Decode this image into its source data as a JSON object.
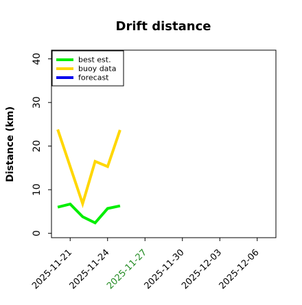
{
  "chart_data": {
    "type": "line",
    "title": "Drift distance",
    "xlabel": "",
    "ylabel": "Distance (km)",
    "ylim": [
      -1,
      42
    ],
    "xlim": [
      "2025-11-19T12:00",
      "2025-12-07T12:00"
    ],
    "x_ticks": [
      {
        "label": "2025-11-21",
        "date": "2025-11-21",
        "color": "#000000"
      },
      {
        "label": "2025-11-24",
        "date": "2025-11-24",
        "color": "#000000"
      },
      {
        "label": "2025-11-27",
        "date": "2025-11-27",
        "color": "#228b22"
      },
      {
        "label": "2025-11-30",
        "date": "2025-11-30",
        "color": "#000000"
      },
      {
        "label": "2025-12-03",
        "date": "2025-12-03",
        "color": "#000000"
      },
      {
        "label": "2025-12-06",
        "date": "2025-12-06",
        "color": "#000000"
      }
    ],
    "y_ticks": [
      0,
      10,
      20,
      30,
      40
    ],
    "grid": false,
    "legend_position": "top-left",
    "series": [
      {
        "name": "best est.",
        "color": "#00ee00",
        "points": [
          {
            "x": "2025-11-20T00:00",
            "y": 6.0
          },
          {
            "x": "2025-11-21T00:00",
            "y": 6.7
          },
          {
            "x": "2025-11-22T00:00",
            "y": 3.8
          },
          {
            "x": "2025-11-23T00:00",
            "y": 2.4
          },
          {
            "x": "2025-11-24T00:00",
            "y": 5.7
          },
          {
            "x": "2025-11-25T00:00",
            "y": 6.3
          }
        ]
      },
      {
        "name": "buoy data",
        "color": "#ffd700",
        "points": [
          {
            "x": "2025-11-20T00:00",
            "y": 23.8
          },
          {
            "x": "2025-11-22T00:00",
            "y": 6.8
          },
          {
            "x": "2025-11-23T00:00",
            "y": 16.5
          },
          {
            "x": "2025-11-24T00:00",
            "y": 15.3
          },
          {
            "x": "2025-11-25T00:00",
            "y": 23.7
          }
        ]
      },
      {
        "name": "forecast",
        "color": "#0000ee",
        "points": []
      }
    ]
  }
}
